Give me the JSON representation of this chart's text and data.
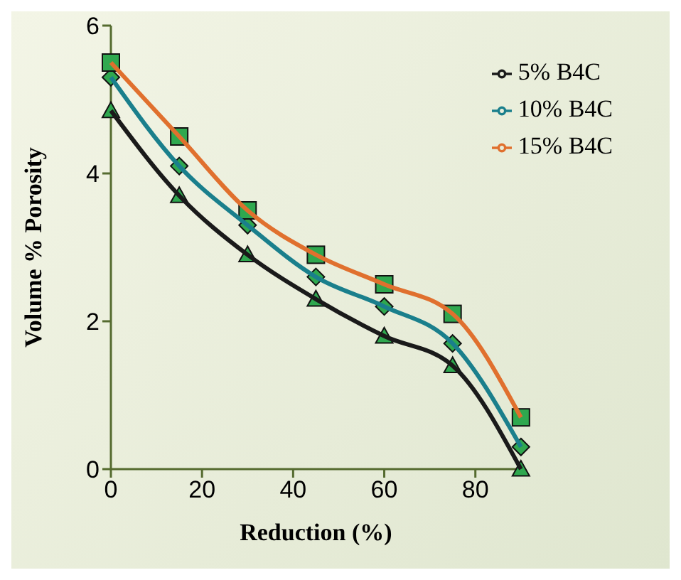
{
  "chart_data": {
    "type": "line",
    "xlabel": "Reduction (%)",
    "ylabel": "Volume % Porosity",
    "x": [
      0,
      15,
      30,
      45,
      60,
      75,
      90
    ],
    "series": [
      {
        "name": "5% B4C",
        "color": "#1a1a1a",
        "marker": "triangle",
        "values": [
          4.85,
          3.7,
          2.9,
          2.3,
          1.8,
          1.4,
          0
        ]
      },
      {
        "name": "10% B4C",
        "color": "#1a7f8c",
        "marker": "diamond",
        "values": [
          5.3,
          4.1,
          3.3,
          2.6,
          2.2,
          1.7,
          0.3
        ]
      },
      {
        "name": "15% B4C",
        "color": "#e0702e",
        "marker": "square",
        "values": [
          5.5,
          4.5,
          3.5,
          2.9,
          2.5,
          2.1,
          0.7
        ]
      }
    ],
    "xlim": [
      0,
      90
    ],
    "xticks": [
      0,
      20,
      40,
      60,
      80
    ],
    "ylim": [
      0,
      6
    ],
    "yticks": [
      0,
      2,
      4,
      6
    ],
    "grid": false,
    "legend": "top right",
    "line_style": "solid"
  }
}
